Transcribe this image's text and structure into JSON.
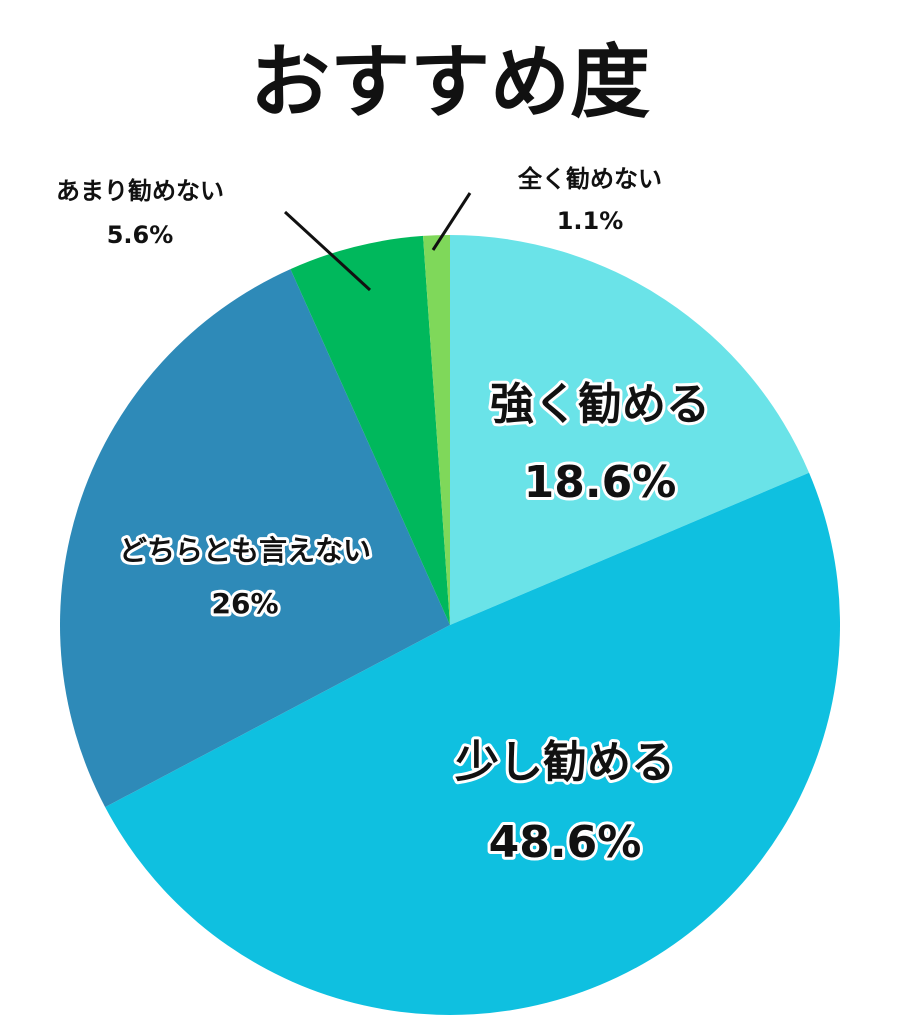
{
  "chart_data": {
    "type": "pie",
    "title": "おすすめ度",
    "categories": [
      "強く勧める",
      "少し勧める",
      "どちらとも言えない",
      "あまり勧めない",
      "全く勧めない"
    ],
    "values": [
      18.6,
      48.6,
      26,
      5.6,
      1.1
    ],
    "value_labels": [
      "18.6%",
      "48.6%",
      "26%",
      "5.6%",
      "1.1%"
    ],
    "colors": [
      "#6ae3e8",
      "#0fc0e0",
      "#2e8ab8",
      "#00b85c",
      "#7fd85a"
    ]
  }
}
